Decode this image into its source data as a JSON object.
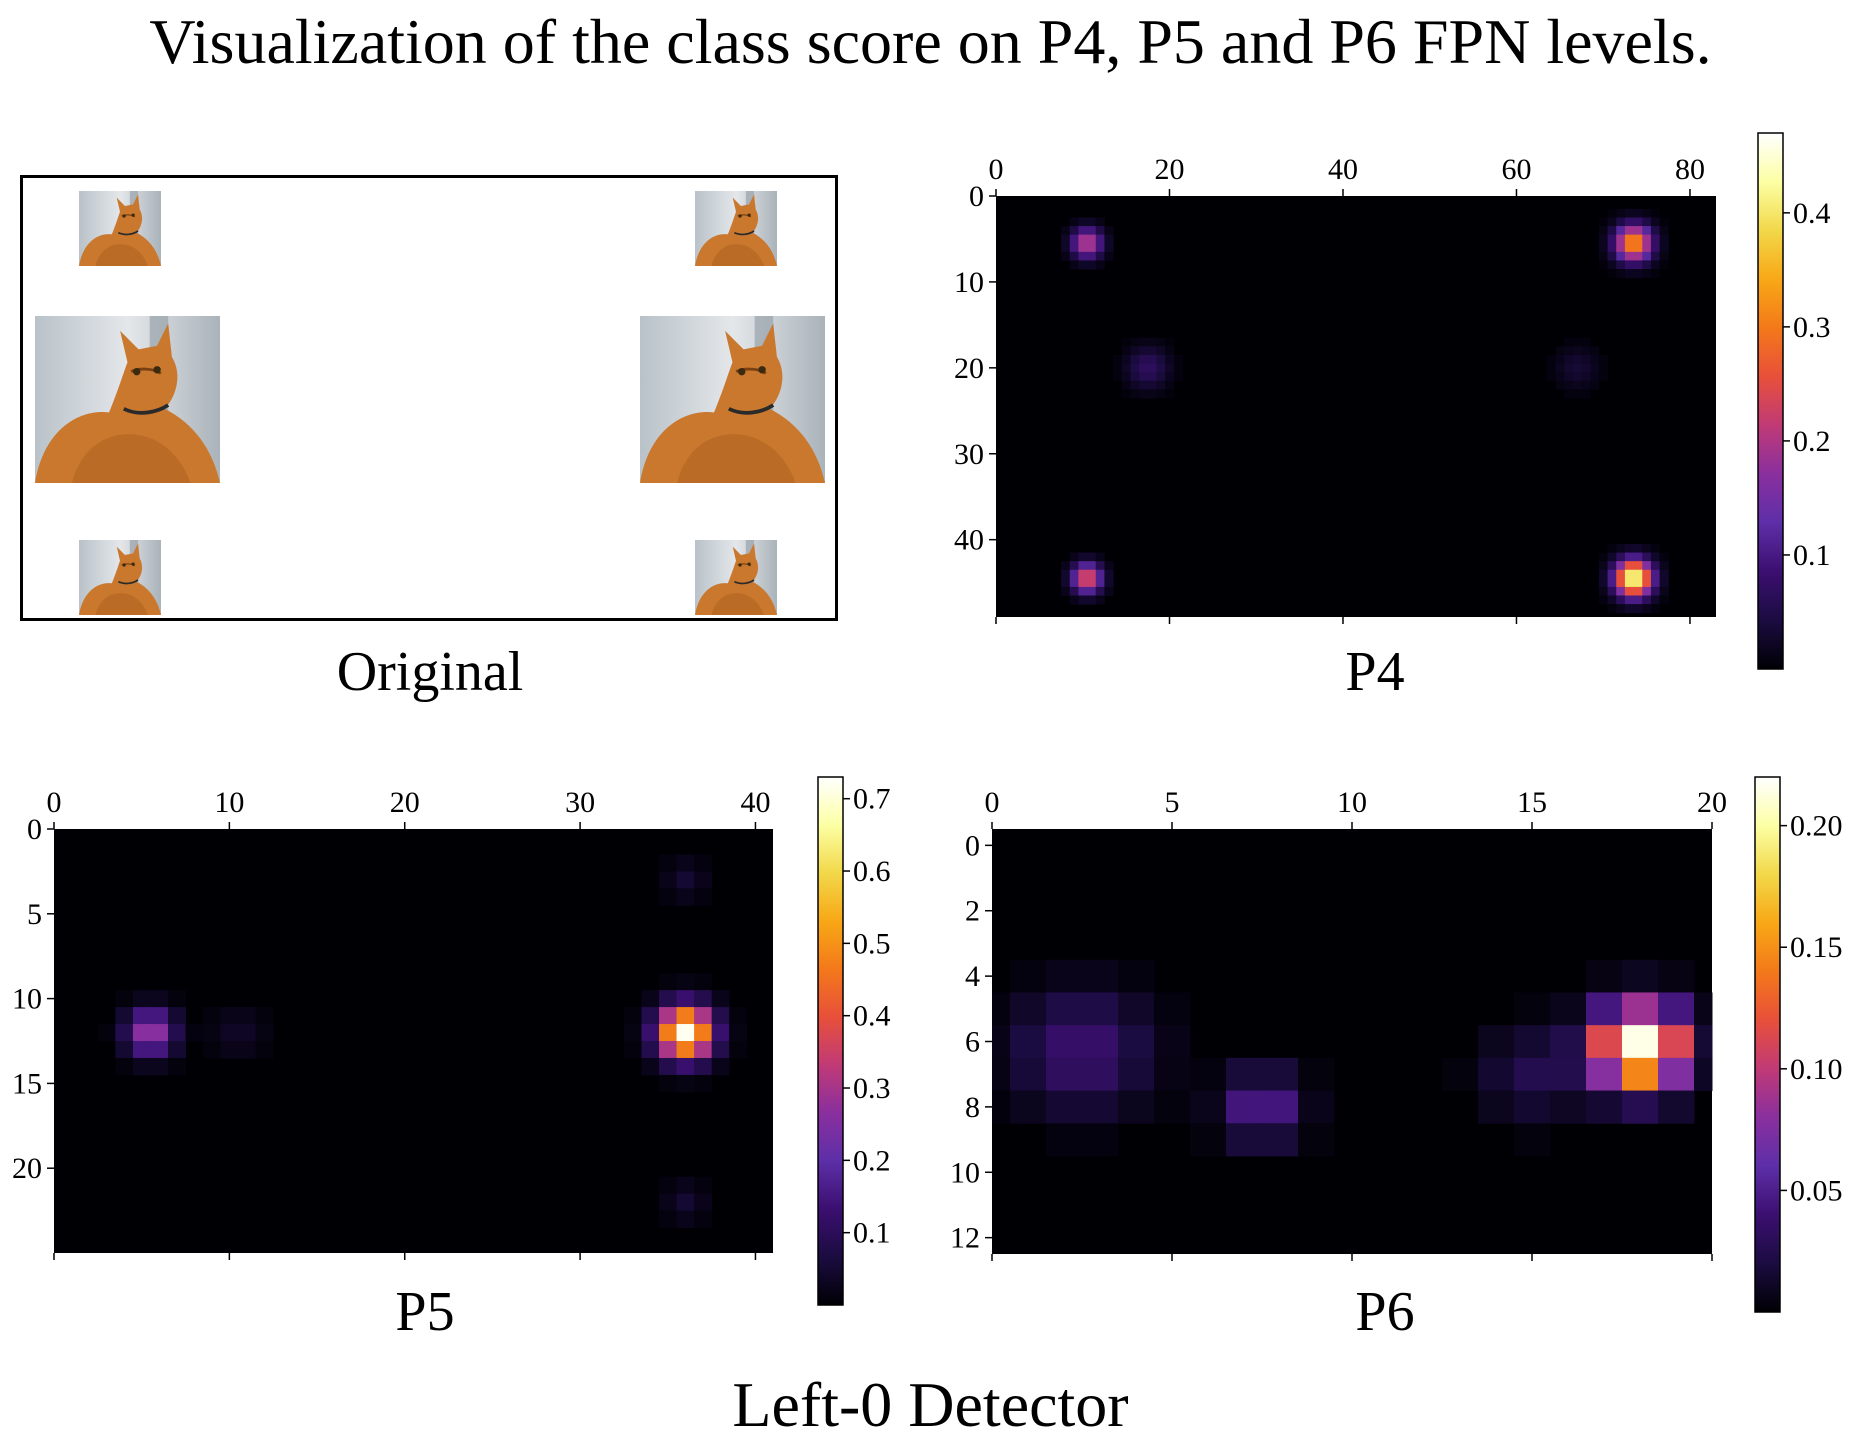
{
  "title": "Visualization of the class score on P4, P5 and P6 FPN levels.",
  "footer": "Left-0 Detector",
  "original_label": "Original",
  "original_image": {
    "description_icon": "cat-photo-icon",
    "cats": [
      "small-top-left",
      "small-top-right",
      "large-mid-left",
      "large-mid-right",
      "small-bottom-left",
      "small-bottom-right"
    ]
  },
  "colormap": [
    "#000004",
    "#1b0c41",
    "#3b0f70",
    "#5d2fa8",
    "#8a2f9e",
    "#c03a76",
    "#e8503a",
    "#f3791a",
    "#f8a816",
    "#f2d84a",
    "#fcffa4",
    "#ffffff"
  ],
  "chart_data": [
    {
      "type": "heatmap",
      "title": "P4",
      "xlabel": "",
      "ylabel": "",
      "xlim": [
        0,
        83
      ],
      "ylim": [
        49,
        0
      ],
      "xticks": [
        0,
        20,
        40,
        60,
        80
      ],
      "yticks": [
        0,
        10,
        20,
        30,
        40
      ],
      "colorbar": {
        "range": [
          0,
          0.47
        ],
        "ticks": [
          0.1,
          0.2,
          0.3,
          0.4
        ],
        "tick_labels": [
          "0.1",
          "0.2",
          "0.3",
          "0.4"
        ]
      },
      "hotspots": [
        {
          "x": 10.5,
          "y": 5.5,
          "peak": 0.22,
          "radius": 1.8
        },
        {
          "x": 73.5,
          "y": 5.5,
          "peak": 0.33,
          "radius": 2.2
        },
        {
          "x": 17.5,
          "y": 20,
          "peak": 0.07,
          "radius": 2.5
        },
        {
          "x": 67,
          "y": 20,
          "peak": 0.035,
          "radius": 2.6
        },
        {
          "x": 10.5,
          "y": 44.5,
          "peak": 0.26,
          "radius": 1.8
        },
        {
          "x": 73.5,
          "y": 44.5,
          "peak": 0.45,
          "radius": 2.2
        }
      ]
    },
    {
      "type": "heatmap",
      "title": "P5",
      "xlabel": "",
      "ylabel": "",
      "xlim": [
        0,
        41
      ],
      "ylim": [
        25,
        0
      ],
      "xticks": [
        0,
        10,
        20,
        30,
        40
      ],
      "yticks": [
        0,
        5,
        10,
        15,
        20
      ],
      "colorbar": {
        "range": [
          0,
          0.73
        ],
        "ticks": [
          0.1,
          0.2,
          0.3,
          0.4,
          0.5,
          0.6,
          0.7
        ],
        "tick_labels": [
          "0.1",
          "0.2",
          "0.3",
          "0.4",
          "0.5",
          "0.6",
          "0.7"
        ]
      },
      "hotspots": [
        {
          "x": 5.5,
          "y": 12,
          "peak": 0.3,
          "radius": 1.4
        },
        {
          "x": 10.5,
          "y": 12,
          "peak": 0.04,
          "radius": 1.6
        },
        {
          "x": 36,
          "y": 12,
          "peak": 0.72,
          "radius": 1.6
        },
        {
          "x": 36,
          "y": 3,
          "peak": 0.05,
          "radius": 1.2
        },
        {
          "x": 36,
          "y": 22,
          "peak": 0.05,
          "radius": 1.2
        }
      ]
    },
    {
      "type": "heatmap",
      "title": "P6",
      "xlabel": "",
      "ylabel": "",
      "xlim": [
        0,
        20
      ],
      "ylim": [
        12.5,
        -0.5
      ],
      "xticks": [
        0,
        5,
        10,
        15,
        20
      ],
      "yticks": [
        0,
        2,
        4,
        6,
        8,
        10,
        12
      ],
      "colorbar": {
        "range": [
          0,
          0.22
        ],
        "ticks": [
          0.05,
          0.1,
          0.15,
          0.2
        ],
        "tick_labels": [
          "0.05",
          "0.10",
          "0.15",
          "0.20"
        ]
      },
      "hotspots": [
        {
          "x": 18,
          "y": 6.2,
          "peak": 0.22,
          "radius": 1.3
        },
        {
          "x": 2.5,
          "y": 6.3,
          "peak": 0.04,
          "radius": 1.9
        },
        {
          "x": 7.5,
          "y": 8,
          "peak": 0.055,
          "radius": 1.1
        },
        {
          "x": 15,
          "y": 7,
          "peak": 0.025,
          "radius": 1.4
        }
      ]
    }
  ]
}
